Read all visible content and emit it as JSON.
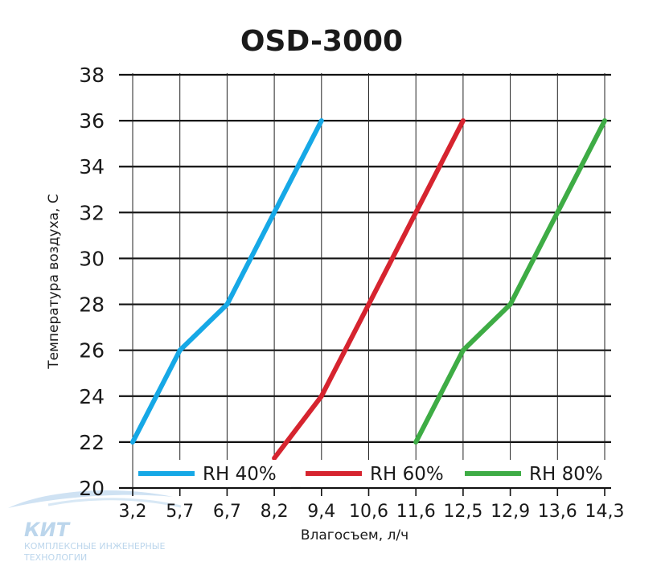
{
  "chart_data": {
    "type": "line",
    "title": "OSD-3000",
    "xlabel": "Влагосъем, л/ч",
    "ylabel": "Температура воздуха, С",
    "x_categories": [
      "3,2",
      "5,7",
      "6,7",
      "8,2",
      "9,4",
      "10,6",
      "11,6",
      "12,5",
      "12,9",
      "13,6",
      "14,3"
    ],
    "y_ticks": [
      "20",
      "22",
      "24",
      "26",
      "28",
      "30",
      "32",
      "34",
      "36",
      "38"
    ],
    "ylim": [
      20,
      38
    ],
    "grid": "horizontal and vertical",
    "legend_position": "bottom, inside plot",
    "series": [
      {
        "name": "RH 40%",
        "color": "#16a8e6",
        "points": [
          {
            "x": "3,2",
            "y": 22
          },
          {
            "x": "5,7",
            "y": 26
          },
          {
            "x": "6,7",
            "y": 28
          },
          {
            "x": "8,2",
            "y": 32
          },
          {
            "x": "9,4",
            "y": 36
          }
        ]
      },
      {
        "name": "RH 60%",
        "color": "#d6242f",
        "points": [
          {
            "x": "8,2",
            "y": 21.3
          },
          {
            "x": "9,4",
            "y": 24
          },
          {
            "x": "10,6",
            "y": 28
          },
          {
            "x": "11,6",
            "y": 32
          },
          {
            "x": "12,5",
            "y": 36
          }
        ]
      },
      {
        "name": "RH 80%",
        "color": "#3eac45",
        "points": [
          {
            "x": "11,6",
            "y": 22
          },
          {
            "x": "12,5",
            "y": 26
          },
          {
            "x": "12,9",
            "y": 28
          },
          {
            "x": "13,6",
            "y": 32
          },
          {
            "x": "14,3",
            "y": 36
          }
        ]
      }
    ]
  },
  "watermark": {
    "main": "КИТ",
    "line1": "КОМПЛЕКСНЫЕ ИНЖЕНЕРНЫЕ",
    "line2": "ТЕХНОЛОГИИ"
  }
}
